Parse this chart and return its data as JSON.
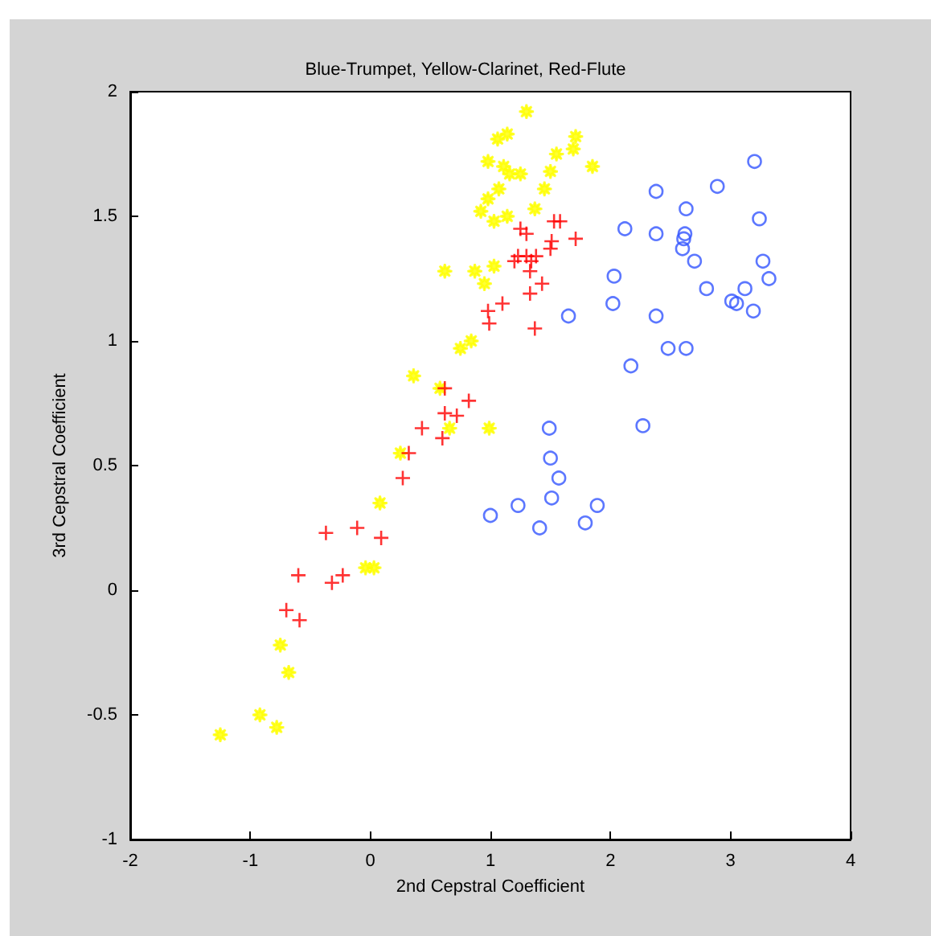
{
  "chart_data": {
    "type": "scatter",
    "title": "Blue-Trumpet, Yellow-Clarinet, Red-Flute",
    "xlabel": "2nd Cepstral Coefficient",
    "ylabel": "3rd Cepstral Coefficient",
    "xlim": [
      -2,
      4
    ],
    "xticks": [
      -2,
      -1,
      0,
      1,
      2,
      3,
      4
    ],
    "ylim": [
      -1,
      2
    ],
    "yticks": [
      -1,
      -0.5,
      0,
      0.5,
      1,
      1.5,
      2
    ],
    "grid": false,
    "series": [
      {
        "color": "#3355ff",
        "marker": "circle",
        "x": [
          3.2,
          2.89,
          2.38,
          2.63,
          2.12,
          2.38,
          3.24,
          2.62,
          2.61,
          2.6,
          2.7,
          3.27,
          3.32,
          2.03,
          3.12,
          2.8,
          3.01,
          3.05,
          3.19,
          2.02,
          2.38,
          1.65,
          2.48,
          2.63,
          2.17,
          2.27,
          1.49,
          1.5,
          1.57,
          1.51,
          1.89,
          1.79,
          1.0,
          1.23,
          1.41
        ],
        "values": [
          1.72,
          1.62,
          1.6,
          1.53,
          1.45,
          1.43,
          1.49,
          1.43,
          1.41,
          1.37,
          1.32,
          1.32,
          1.25,
          1.26,
          1.21,
          1.21,
          1.16,
          1.15,
          1.12,
          1.15,
          1.1,
          1.1,
          0.97,
          0.97,
          0.9,
          0.66,
          0.65,
          0.53,
          0.45,
          0.37,
          0.34,
          0.27,
          0.3,
          0.34,
          0.25
        ]
      },
      {
        "color": "#ffff00",
        "marker": "star",
        "x": [
          1.3,
          1.14,
          1.06,
          0.98,
          1.25,
          1.07,
          0.98,
          0.92,
          1.03,
          1.14,
          0.62,
          0.87,
          1.03,
          0.95,
          0.84,
          0.75,
          0.36,
          0.58,
          0.66,
          0.99,
          0.25,
          1.71,
          1.69,
          1.55,
          1.85,
          1.5,
          1.45,
          1.37,
          1.11,
          1.16,
          0.08,
          -0.04,
          0.03,
          -0.75,
          -0.68,
          -0.92,
          -0.78,
          -1.25
        ],
        "values": [
          1.92,
          1.83,
          1.81,
          1.72,
          1.67,
          1.61,
          1.57,
          1.52,
          1.48,
          1.5,
          1.28,
          1.28,
          1.3,
          1.23,
          1.0,
          0.97,
          0.86,
          0.81,
          0.65,
          0.65,
          0.55,
          1.82,
          1.77,
          1.75,
          1.7,
          1.68,
          1.61,
          1.53,
          1.7,
          1.67,
          0.35,
          0.09,
          0.09,
          -0.22,
          -0.33,
          -0.5,
          -0.55,
          -0.58
        ]
      },
      {
        "color": "#ff0000",
        "marker": "cross",
        "x": [
          1.25,
          1.3,
          1.2,
          1.3,
          1.33,
          1.33,
          1.1,
          0.98,
          0.99,
          0.82,
          0.62,
          0.72,
          0.62,
          0.43,
          0.6,
          0.32,
          0.27,
          1.53,
          1.58,
          1.71,
          1.51,
          1.5,
          1.23,
          1.38,
          1.34,
          1.43,
          1.37,
          -0.11,
          -0.37,
          0.09,
          -0.6,
          -0.23,
          -0.32,
          -0.7,
          -0.59
        ],
        "values": [
          1.45,
          1.43,
          1.32,
          1.34,
          1.28,
          1.19,
          1.15,
          1.12,
          1.07,
          0.76,
          0.81,
          0.7,
          0.71,
          0.65,
          0.61,
          0.55,
          0.45,
          1.48,
          1.48,
          1.41,
          1.4,
          1.37,
          1.34,
          1.34,
          1.32,
          1.23,
          1.05,
          0.25,
          0.23,
          0.21,
          0.06,
          0.06,
          0.03,
          -0.08,
          -0.12
        ]
      }
    ]
  }
}
